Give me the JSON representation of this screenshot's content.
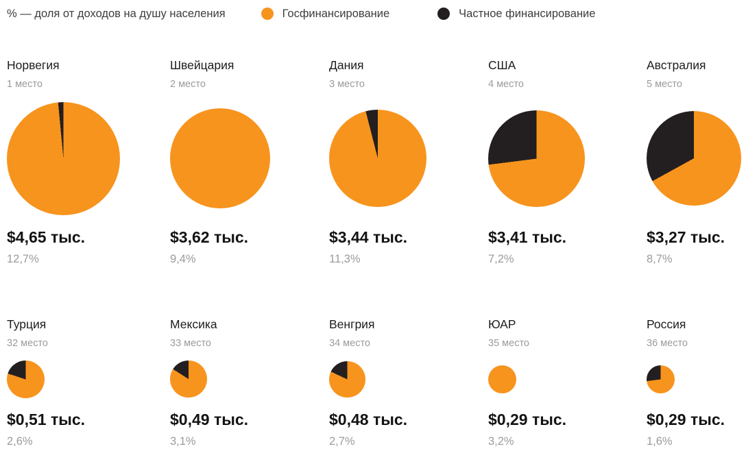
{
  "chart_data": {
    "type": "pie",
    "note": "% — доля от доходов на душу населения",
    "legend": [
      {
        "label": "Госфинансирование",
        "color": "#F7941E"
      },
      {
        "label": "Частное финансирование",
        "color": "#231F20"
      }
    ],
    "colors": {
      "public": "#F7941E",
      "private": "#231F20"
    },
    "layout": {
      "rows": 2,
      "columns": 5,
      "size_rule": "pie area proportional to amount",
      "slice_direction": "private slice drawn counterclockwise from 12 o'clock"
    },
    "countries": [
      {
        "name": "Норвегия",
        "rank": "1 место",
        "amount": "$4,65 тыс.",
        "value_thousand_usd": 4.65,
        "income_share": "12,7%",
        "private_share": 0.015
      },
      {
        "name": "Швейцария",
        "rank": "2 место",
        "amount": "$3,62 тыс.",
        "value_thousand_usd": 3.62,
        "income_share": "9,4%",
        "private_share": 0
      },
      {
        "name": "Дания",
        "rank": "3 место",
        "amount": "$3,44 тыс.",
        "value_thousand_usd": 3.44,
        "income_share": "11,3%",
        "private_share": 0.04
      },
      {
        "name": "США",
        "rank": "4 место",
        "amount": "$3,41 тыс.",
        "value_thousand_usd": 3.41,
        "income_share": "7,2%",
        "private_share": 0.27
      },
      {
        "name": "Австралия",
        "rank": "5 место",
        "amount": "$3,27 тыс.",
        "value_thousand_usd": 3.27,
        "income_share": "8,7%",
        "private_share": 0.33
      },
      {
        "name": "Турция",
        "rank": "32 место",
        "amount": "$0,51 тыс.",
        "value_thousand_usd": 0.51,
        "income_share": "2,6%",
        "private_share": 0.2
      },
      {
        "name": "Мексика",
        "rank": "33 место",
        "amount": "$0,49 тыс.",
        "value_thousand_usd": 0.49,
        "income_share": "3,1%",
        "private_share": 0.16
      },
      {
        "name": "Венгрия",
        "rank": "34 место",
        "amount": "$0,48 тыс.",
        "value_thousand_usd": 0.48,
        "income_share": "2,7%",
        "private_share": 0.18
      },
      {
        "name": "ЮАР",
        "rank": "35 место",
        "amount": "$0,29 тыс.",
        "value_thousand_usd": 0.29,
        "income_share": "3,2%",
        "private_share": 0
      },
      {
        "name": "Россия",
        "rank": "36 место",
        "amount": "$0,29 тыс.",
        "value_thousand_usd": 0.29,
        "income_share": "1,6%",
        "private_share": 0.27
      }
    ]
  }
}
